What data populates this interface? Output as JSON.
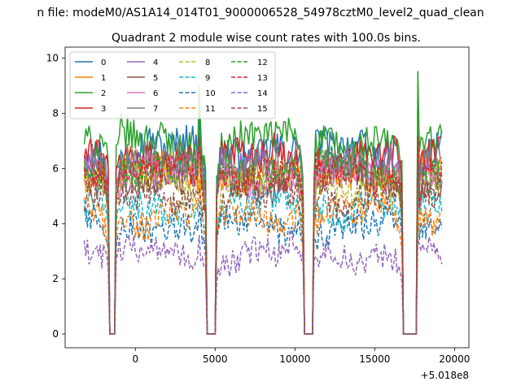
{
  "chart_data": {
    "type": "line",
    "suptitle": "n file: modeM0/AS1A14_014T01_9000006528_54978cztM0_level2_quad_clean",
    "title": "Quadrant 2 module wise count rates with 100.0s bins.",
    "xlabel": "",
    "ylabel": "",
    "x_offset_label": "+5.018e8",
    "xlim": [
      -4400,
      20900
    ],
    "ylim": [
      -0.5,
      10.4
    ],
    "xticks": [
      0,
      5000,
      10000,
      15000,
      20000
    ],
    "xtick_labels": [
      "0",
      "5000",
      "10000",
      "15000",
      "20000"
    ],
    "yticks": [
      0,
      2,
      4,
      6,
      8,
      10
    ],
    "ytick_labels": [
      "0",
      "2",
      "4",
      "6",
      "8",
      "10"
    ],
    "legend_position": "top-left",
    "legend_columns": 4,
    "x_start": -3200,
    "x_end": 19200,
    "x_step": 100,
    "gaps": [
      [
        -1600,
        -1300
      ],
      [
        4500,
        5000
      ],
      [
        10600,
        11100
      ],
      [
        16800,
        17600
      ]
    ],
    "spikes": [
      {
        "x": 4000,
        "dy": 1.6
      },
      {
        "x": 17700,
        "dy": 3.2
      },
      {
        "x": 11300,
        "dy": 0.8
      },
      {
        "x": -1200,
        "dy": 0.6
      }
    ],
    "series": [
      {
        "name": "0",
        "color": "#1f77b4",
        "style": "solid",
        "level": 6.7
      },
      {
        "name": "1",
        "color": "#ff7f0e",
        "style": "solid",
        "level": 5.9
      },
      {
        "name": "2",
        "color": "#2ca02c",
        "style": "solid",
        "level": 7.0
      },
      {
        "name": "3",
        "color": "#d62728",
        "style": "solid",
        "level": 6.4
      },
      {
        "name": "4",
        "color": "#9467bd",
        "style": "solid",
        "level": 6.0
      },
      {
        "name": "5",
        "color": "#8c564b",
        "style": "solid",
        "level": 5.6
      },
      {
        "name": "6",
        "color": "#e377c2",
        "style": "solid",
        "level": 5.8
      },
      {
        "name": "7",
        "color": "#7f7f7f",
        "style": "solid",
        "level": 6.2
      },
      {
        "name": "8",
        "color": "#bcbd22",
        "style": "dashed",
        "level": 5.5
      },
      {
        "name": "9",
        "color": "#17becf",
        "style": "dashed",
        "level": 4.6
      },
      {
        "name": "10",
        "color": "#1f77b4",
        "style": "dashed",
        "level": 3.9
      },
      {
        "name": "11",
        "color": "#ff7f0e",
        "style": "dashed",
        "level": 4.3
      },
      {
        "name": "12",
        "color": "#2ca02c",
        "style": "dashed",
        "level": 6.0
      },
      {
        "name": "13",
        "color": "#d62728",
        "style": "dashed",
        "level": 5.8
      },
      {
        "name": "14",
        "color": "#9467bd",
        "style": "dashed",
        "level": 2.9
      },
      {
        "name": "15",
        "color": "#8c564b",
        "style": "dashed",
        "level": 5.0
      }
    ]
  }
}
